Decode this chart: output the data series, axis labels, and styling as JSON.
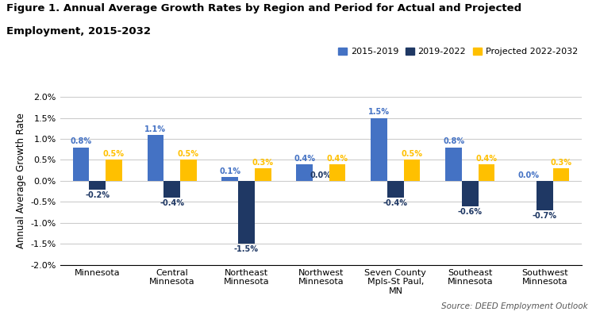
{
  "title_line1": "Figure 1. Annual Average Growth Rates by Region and Period for Actual and Projected",
  "title_line2": "Employment, 2015-2032",
  "categories": [
    "Minnesota",
    "Central\nMinnesota",
    "Northeast\nMinnesota",
    "Northwest\nMinnesota",
    "Seven County\nMpls-St Paul,\nMN",
    "Southeast\nMinnesota",
    "Southwest\nMinnesota"
  ],
  "series": [
    {
      "label": "2015-2019",
      "color": "#4472C4",
      "values": [
        0.8,
        1.1,
        0.1,
        0.4,
        1.5,
        0.8,
        0.0
      ]
    },
    {
      "label": "2019-2022",
      "color": "#1F3864",
      "values": [
        -0.2,
        -0.4,
        -1.5,
        0.0,
        -0.4,
        -0.6,
        -0.7
      ]
    },
    {
      "label": "Projected 2022-2032",
      "color": "#FFC000",
      "values": [
        0.5,
        0.5,
        0.3,
        0.4,
        0.5,
        0.4,
        0.3
      ]
    }
  ],
  "ylabel": "Annual Average Growth Rate",
  "ylim": [
    -2.0,
    2.0
  ],
  "yticks": [
    -2.0,
    -1.5,
    -1.0,
    -0.5,
    0.0,
    0.5,
    1.0,
    1.5,
    2.0
  ],
  "source_text": "Source: DEED Employment Outlook",
  "background_color": "#FFFFFF",
  "grid_color": "#CCCCCC",
  "bar_width": 0.22,
  "label_fontsize": 7.0,
  "title_fontsize": 9.5,
  "axis_fontsize": 8.0,
  "ylabel_fontsize": 8.5
}
